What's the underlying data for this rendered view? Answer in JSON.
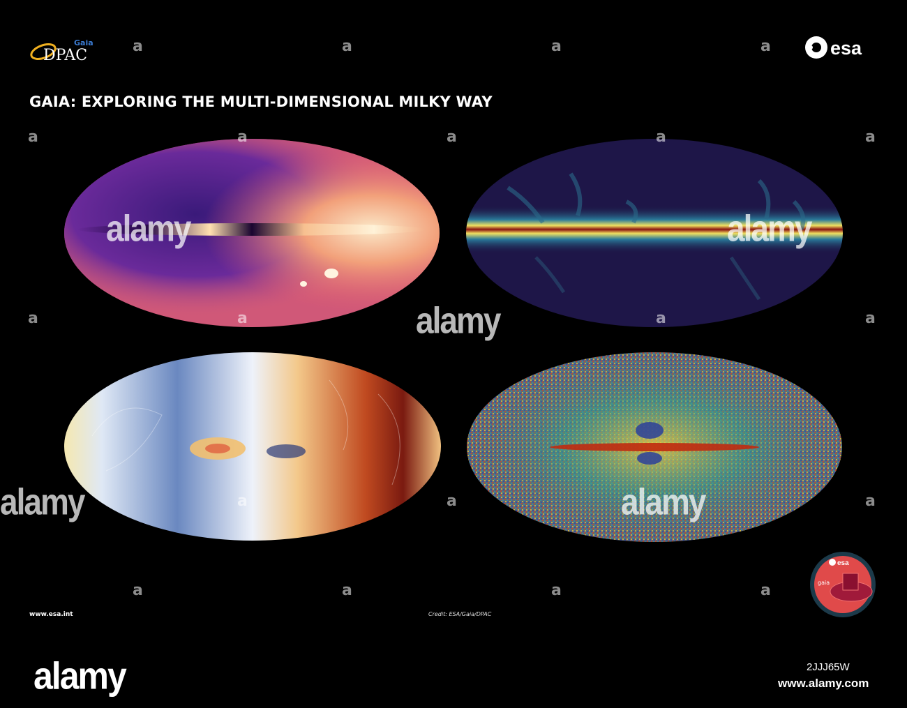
{
  "header": {
    "title": "GAIA: EXPLORING THE MULTI-DIMENSIONAL MILKY WAY",
    "dpac_logo": {
      "small_text": "Gaia",
      "main_text": "DPAC"
    },
    "esa_logo": {
      "text": "esa"
    }
  },
  "maps": [
    {
      "name": "star-density-map",
      "palette": [
        "#3a1a6b",
        "#7a2f9a",
        "#e05a6a",
        "#f7d3a0"
      ]
    },
    {
      "name": "interstellar-dust-map",
      "palette": [
        "#1c1440",
        "#2a7a9a",
        "#f0e060",
        "#8a1010"
      ]
    },
    {
      "name": "stellar-velocity-map",
      "palette": [
        "#1e3a7a",
        "#dfe8f5",
        "#f5e0a0",
        "#a02010"
      ]
    },
    {
      "name": "chemical-composition-map",
      "palette": [
        "#2b3f9a",
        "#3aa58a",
        "#f0d040",
        "#c02a10"
      ]
    }
  ],
  "footer": {
    "url": "www.esa.int",
    "credit": "Credit: ESA/Gaia/DPAC"
  },
  "mission_patch": {
    "agency": "esa",
    "mission": "gaia"
  },
  "watermark": {
    "letter": "a",
    "word": "alamy",
    "stock_id": "2JJJ65W",
    "stock_url": "www.alamy.com"
  }
}
